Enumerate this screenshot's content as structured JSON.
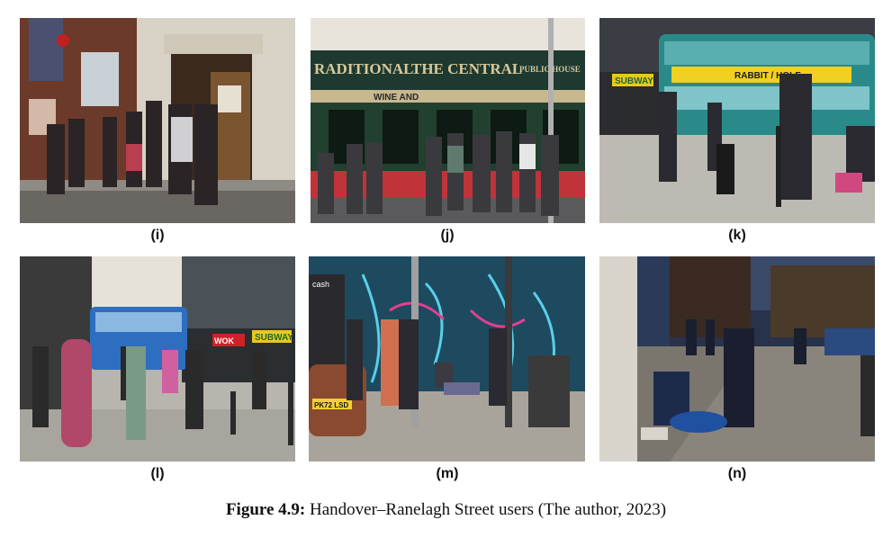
{
  "figure": {
    "panels": [
      {
        "label": "(i)"
      },
      {
        "label": "(j)",
        "sign_text": "THE CENTRAL",
        "sign_left": "RADITIONAL",
        "sign_right": "PUBLIC HOUSE",
        "sign_sub": "WINE AND"
      },
      {
        "label": "(k)",
        "store_sign": "SUBWAY",
        "bus_ad": "RABBIT / HOLE"
      },
      {
        "label": "(l)",
        "store_sign": "SUBWAY",
        "store_sign2": "WOK"
      },
      {
        "label": "(m)",
        "car_plate": "PK72 LSD",
        "kiosk_text": "cash"
      },
      {
        "label": "(n)"
      }
    ],
    "caption_prefix": "Figure 4.9:",
    "caption_text": " Handover–Ranelagh Street users (The author, 2023)"
  }
}
